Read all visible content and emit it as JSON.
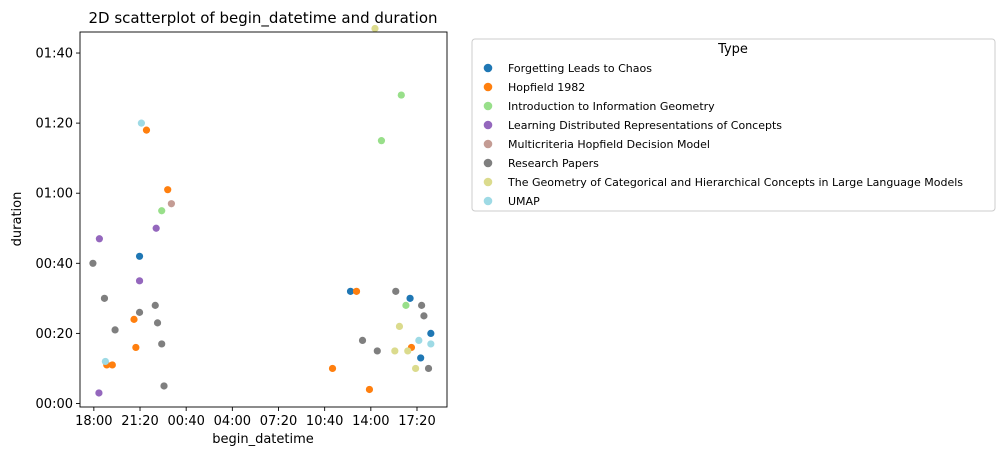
{
  "chart_data": {
    "type": "scatter",
    "title": "2D scatterplot of begin_datetime and duration",
    "xlabel": "begin_datetime",
    "ylabel": "duration",
    "x_ticks": [
      "18:00",
      "21:20",
      "00:40",
      "04:00",
      "07:20",
      "10:40",
      "14:00",
      "17:20"
    ],
    "y_ticks": [
      "00:00",
      "00:20",
      "00:40",
      "01:00",
      "01:20",
      "01:40"
    ],
    "y_tick_minutes": [
      0,
      20,
      40,
      60,
      80,
      100
    ],
    "y_range_minutes": [
      -1,
      106
    ],
    "x_tick_positions": [
      0,
      1,
      2,
      3,
      4,
      5,
      6,
      7
    ],
    "x_range": [
      -0.3,
      7.65
    ],
    "grid": false,
    "legend": {
      "title": "Type",
      "placement": "outside-right"
    },
    "series": [
      {
        "name": "Forgetting Leads to Chaos",
        "color": "#1f77b4",
        "points": [
          [
            0.99,
            42
          ],
          [
            5.56,
            32
          ],
          [
            6.85,
            30
          ],
          [
            7.08,
            13
          ],
          [
            7.3,
            20
          ]
        ]
      },
      {
        "name": "Hopfield 1982",
        "color": "#ff7f0e",
        "points": [
          [
            0.28,
            11
          ],
          [
            0.4,
            11
          ],
          [
            0.87,
            24
          ],
          [
            0.91,
            16
          ],
          [
            1.14,
            78
          ],
          [
            1.6,
            61
          ],
          [
            5.17,
            10
          ],
          [
            5.69,
            32
          ],
          [
            5.97,
            4
          ],
          [
            6.88,
            16
          ]
        ]
      },
      {
        "name": "Introduction to Information Geometry",
        "color": "#98df8a",
        "points": [
          [
            1.47,
            55
          ],
          [
            6.23,
            75
          ],
          [
            6.66,
            88
          ],
          [
            6.76,
            28
          ]
        ]
      },
      {
        "name": "Learning Distributed Representations of Concepts",
        "color": "#9467bd",
        "points": [
          [
            0.12,
            47
          ],
          [
            0.11,
            3
          ],
          [
            0.99,
            35
          ],
          [
            1.35,
            50
          ]
        ]
      },
      {
        "name": "Multicriteria Hopfield Decision Model",
        "color": "#c49c94",
        "points": [
          [
            1.68,
            57
          ]
        ]
      },
      {
        "name": "Research Papers",
        "color": "#7f7f7f",
        "points": [
          [
            -0.02,
            40
          ],
          [
            0.23,
            30
          ],
          [
            0.46,
            21
          ],
          [
            0.99,
            26
          ],
          [
            1.33,
            28
          ],
          [
            1.38,
            23
          ],
          [
            1.47,
            17
          ],
          [
            1.52,
            5
          ],
          [
            5.82,
            18
          ],
          [
            6.14,
            15
          ],
          [
            6.54,
            32
          ],
          [
            7.1,
            28
          ],
          [
            7.15,
            25
          ],
          [
            7.25,
            10
          ]
        ]
      },
      {
        "name": "The Geometry of Categorical and Hierarchical Concepts in Large Language Models",
        "color": "#dbdb8d",
        "points": [
          [
            6.09,
            107
          ],
          [
            6.52,
            15
          ],
          [
            6.62,
            22
          ],
          [
            6.8,
            15
          ],
          [
            6.97,
            10
          ]
        ]
      },
      {
        "name": "UMAP",
        "color": "#9edae5",
        "points": [
          [
            0.25,
            12
          ],
          [
            1.03,
            80
          ],
          [
            7.04,
            18
          ],
          [
            7.3,
            17
          ]
        ]
      }
    ]
  }
}
